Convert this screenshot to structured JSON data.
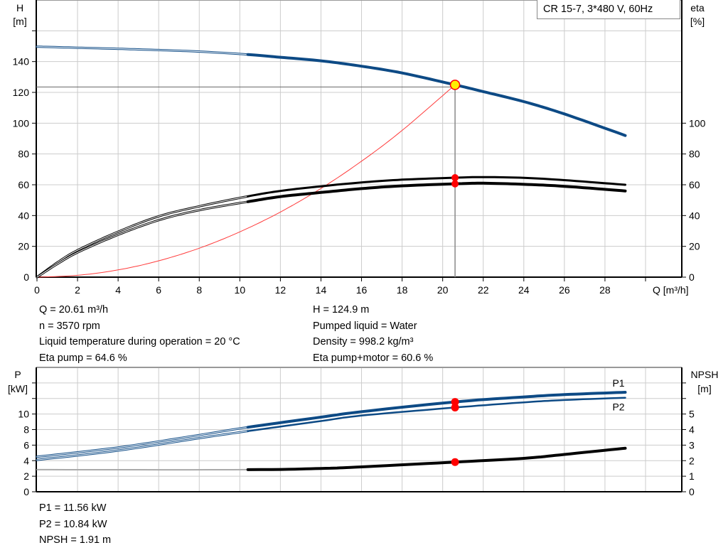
{
  "legend": "CR 15-7, 3*480 V, 60Hz",
  "colors": {
    "head": "#0d4a85",
    "eta": "#000000",
    "system": "#ff3b3b",
    "power": "#0d4a85",
    "npsh": "#000000",
    "op_point": "#ff0000",
    "op_point_fill": "#ffee00",
    "grid": "#cccccc"
  },
  "chart_data": [
    {
      "type": "line",
      "xlabel": "Q [m³/h]",
      "xlim": [
        0,
        30
      ],
      "x_ticks": [
        0,
        2,
        4,
        6,
        8,
        10,
        12,
        14,
        16,
        18,
        20,
        22,
        24,
        26,
        28
      ],
      "ylabel_left": [
        "H",
        "[m]"
      ],
      "ylim_left": [
        0,
        180
      ],
      "y_ticks_left": [
        0,
        20,
        40,
        60,
        80,
        100,
        120,
        140
      ],
      "ylabel_right": [
        "eta",
        "[%]"
      ],
      "ylim_right": [
        0,
        180
      ],
      "y_ticks_right": [
        0,
        20,
        40,
        60,
        80,
        100
      ],
      "grid": true,
      "series": [
        {
          "key": "H",
          "axis": "left",
          "x": [
            0,
            2,
            4,
            6,
            8,
            10.4,
            12,
            14,
            16,
            18,
            20.61,
            22,
            24,
            26,
            29
          ],
          "y": [
            149.7,
            149,
            148.3,
            147.5,
            146.5,
            144.6,
            142.8,
            140.5,
            137,
            132.6,
            124.9,
            120.5,
            114,
            106,
            92
          ]
        },
        {
          "key": "eta_pump",
          "axis": "right",
          "x": [
            0,
            1,
            2,
            4,
            6,
            8,
            10.4,
            12,
            14,
            16,
            18,
            20.61,
            22,
            24,
            26,
            29
          ],
          "y": [
            0,
            9.5,
            17.5,
            29.5,
            39.5,
            46,
            52.5,
            56,
            59,
            61.5,
            63.3,
            64.6,
            65,
            64.5,
            63,
            60
          ]
        },
        {
          "key": "eta_pump_motor",
          "axis": "right",
          "x": [
            0,
            1,
            2,
            4,
            6,
            8,
            10.4,
            12,
            14,
            16,
            18,
            20.61,
            22,
            24,
            26,
            29
          ],
          "y": [
            0,
            8.5,
            16,
            27.5,
            37,
            43.5,
            49,
            52.3,
            55,
            57.5,
            59.3,
            60.6,
            61,
            60.3,
            59,
            56
          ]
        },
        {
          "key": "system_curve",
          "axis": "left",
          "x": [
            0,
            2,
            4,
            6,
            8,
            10,
            12,
            14,
            16,
            18,
            20.61
          ],
          "y": [
            0,
            1.2,
            4.7,
            10.6,
            18.8,
            29.4,
            42.3,
            57.6,
            75.3,
            95.3,
            124.9
          ]
        }
      ],
      "operating_point": {
        "Q": 20.61,
        "H": 124.9,
        "eta_pump": 64.6,
        "eta_pump_motor": 60.6
      }
    },
    {
      "type": "line",
      "xlim": [
        0,
        30
      ],
      "ylabel_left": [
        "P",
        "[kW]"
      ],
      "ylim_left": [
        0,
        16
      ],
      "y_ticks_left": [
        0,
        2,
        4,
        6,
        8,
        10
      ],
      "ylabel_right": [
        "NPSH",
        "[m]"
      ],
      "ylim_right": [
        0,
        8
      ],
      "y_ticks_right": [
        0,
        1,
        2,
        3,
        4,
        5
      ],
      "grid": true,
      "series": [
        {
          "key": "P1",
          "name": "P1",
          "axis": "left",
          "x": [
            0,
            4,
            8,
            10.4,
            14,
            16,
            20.61,
            24,
            26,
            29
          ],
          "y": [
            4.5,
            5.7,
            7.3,
            8.3,
            9.6,
            10.3,
            11.56,
            12.2,
            12.5,
            12.8
          ]
        },
        {
          "key": "P2",
          "name": "P2",
          "axis": "left",
          "x": [
            0,
            4,
            8,
            10.4,
            14,
            16,
            20.61,
            24,
            26,
            29
          ],
          "y": [
            4.1,
            5.3,
            6.9,
            7.8,
            9.1,
            9.8,
            10.84,
            11.5,
            11.8,
            12.1
          ]
        },
        {
          "key": "NPSH",
          "axis": "right",
          "x": [
            0,
            10.4,
            14,
            16,
            20.61,
            24,
            26,
            29
          ],
          "y": [
            1.42,
            1.42,
            1.5,
            1.6,
            1.91,
            2.15,
            2.4,
            2.8
          ]
        }
      ],
      "operating_point": {
        "Q": 20.61,
        "P1": 11.56,
        "P2": 10.84,
        "NPSH": 1.91
      }
    }
  ],
  "info_top_left": [
    "Q = 20.61 m³/h",
    "n = 3570 rpm",
    "Liquid temperature during operation = 20 °C",
    "Eta pump = 64.6 %"
  ],
  "info_top_right": [
    "H = 124.9 m",
    "Pumped liquid = Water",
    "Density = 998.2 kg/m³",
    "Eta pump+motor = 60.6 %"
  ],
  "info_bottom": [
    "P1 = 11.56 kW",
    "P2 = 10.84 kW",
    "NPSH = 1.91 m"
  ]
}
